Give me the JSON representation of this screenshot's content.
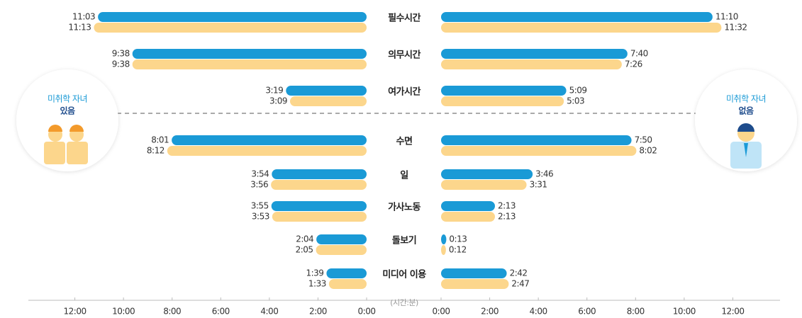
{
  "chart_data": {
    "type": "butterfly",
    "x_label": "(시간:분)",
    "categories": [
      "필수시간",
      "의무시간",
      "여가시간",
      "수면",
      "일",
      "가사노동",
      "돌보기",
      "미디어 이용"
    ],
    "groups": [
      {
        "label": "미취학 자녀",
        "sublabel": "있음",
        "side": "left",
        "series": [
          {
            "color": "#1a9ad6",
            "values": [
              663,
              578,
              199,
              481,
              234,
              235,
              124,
              99
            ],
            "value_labels": [
              "11:03",
              "9:38",
              "3:19",
              "8:01",
              "3:54",
              "3:55",
              "2:04",
              "1:39"
            ]
          },
          {
            "color": "#fcd68c",
            "values": [
              673,
              578,
              189,
              492,
              236,
              233,
              125,
              93
            ],
            "value_labels": [
              "11:13",
              "9:38",
              "3:09",
              "8:12",
              "3:56",
              "3:53",
              "2:05",
              "1:33"
            ]
          }
        ]
      },
      {
        "label": "미취학 자녀",
        "sublabel": "없음",
        "side": "right",
        "series": [
          {
            "color": "#1a9ad6",
            "values": [
              670,
              460,
              309,
              470,
              226,
              133,
              13,
              162
            ],
            "value_labels": [
              "11:10",
              "7:40",
              "5:09",
              "7:50",
              "3:46",
              "2:13",
              "0:13",
              "2:42"
            ]
          },
          {
            "color": "#fcd68c",
            "values": [
              692,
              446,
              303,
              482,
              211,
              133,
              12,
              167
            ],
            "value_labels": [
              "11:32",
              "7:26",
              "5:03",
              "8:02",
              "3:31",
              "2:13",
              "0:12",
              "2:47"
            ]
          }
        ]
      }
    ],
    "xlim": [
      0,
      840
    ],
    "xticks": [
      {
        "value": 0,
        "label": "0:00"
      },
      {
        "value": 120,
        "label": "2:00"
      },
      {
        "value": 240,
        "label": "4:00"
      },
      {
        "value": 360,
        "label": "6:00"
      },
      {
        "value": 480,
        "label": "8:00"
      },
      {
        "value": 600,
        "label": "10:00"
      },
      {
        "value": 720,
        "label": "12:00"
      }
    ]
  }
}
